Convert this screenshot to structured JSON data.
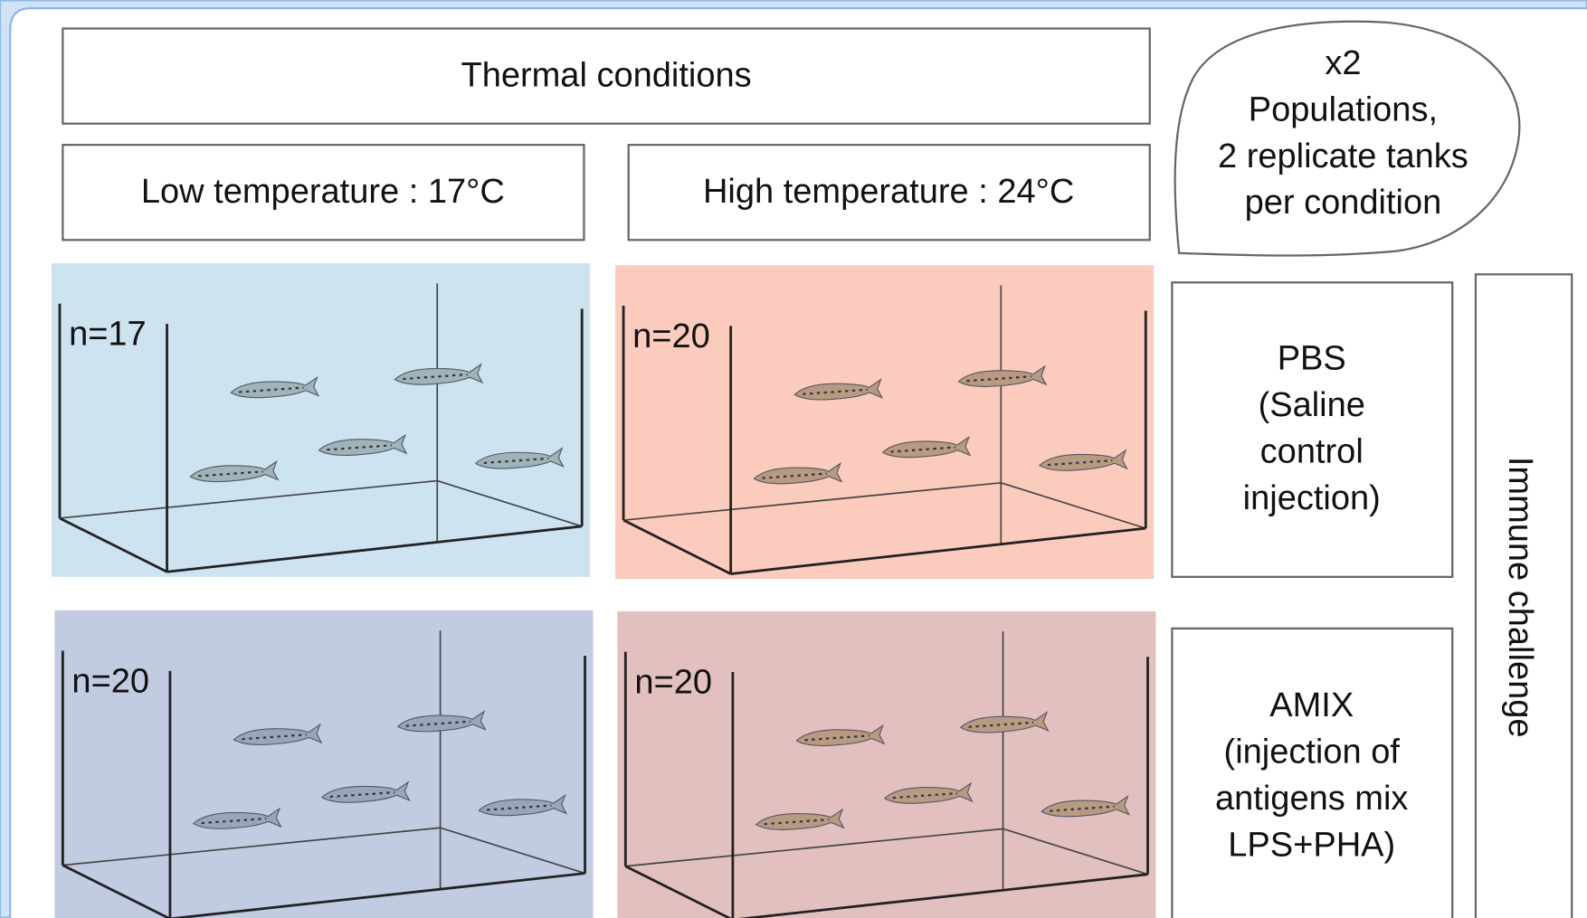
{
  "header": {
    "title": "Thermal conditions"
  },
  "conditions": [
    "Low temperature : 17°C",
    "High temperature : 24°C"
  ],
  "note": {
    "lines": [
      "x2",
      "Populations,",
      "2 replicate tanks",
      "per condition"
    ]
  },
  "treatments": [
    {
      "lines": [
        "PBS",
        "(Saline",
        "control",
        "injection)"
      ]
    },
    {
      "lines": [
        "AMIX",
        "(injection of",
        "antigens mix",
        "LPS+PHA)"
      ]
    }
  ],
  "side_label": "Immune challenge",
  "tanks": [
    {
      "label": "n=17"
    },
    {
      "label": "n=20"
    },
    {
      "label": "n=20"
    },
    {
      "label": "n=20"
    }
  ]
}
